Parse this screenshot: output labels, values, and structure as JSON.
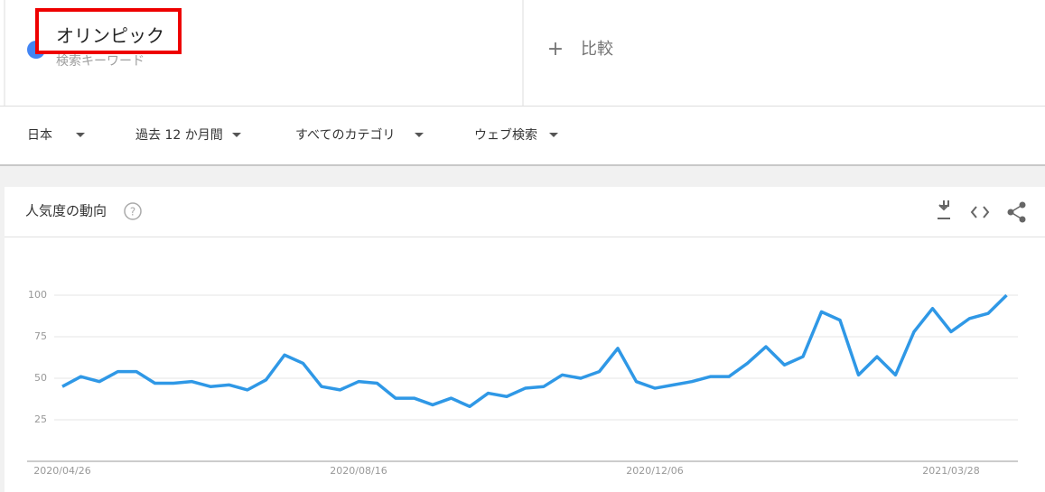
{
  "search": {
    "term": "オリンピック",
    "term_type": "検索キーワード",
    "compare": "比較"
  },
  "filters": [
    "日本",
    "過去 12 か月間",
    "すべてのカテゴリ",
    "ウェブ検索"
  ],
  "chart_data": {
    "type": "line",
    "title": "人気度の動向",
    "categories": [
      "2020/04/26",
      null,
      null,
      null,
      null,
      null,
      null,
      null,
      null,
      null,
      null,
      null,
      null,
      null,
      null,
      null,
      "2020/08/16",
      null,
      null,
      null,
      null,
      null,
      null,
      null,
      null,
      null,
      null,
      null,
      null,
      null,
      null,
      null,
      "2020/12/06",
      null,
      null,
      null,
      null,
      null,
      null,
      null,
      null,
      null,
      null,
      null,
      null,
      null,
      null,
      null,
      "2021/03/28",
      null,
      null,
      null
    ],
    "series": [
      {
        "color": "#2f98e6",
        "values": [
          45,
          51,
          48,
          54,
          54,
          47,
          47,
          48,
          45,
          46,
          43,
          49,
          64,
          59,
          45,
          43,
          48,
          47,
          38,
          38,
          34,
          38,
          33,
          41,
          39,
          44,
          45,
          52,
          50,
          54,
          68,
          48,
          44,
          46,
          48,
          51,
          51,
          59,
          69,
          58,
          63,
          90,
          85,
          52,
          63,
          52,
          78,
          92,
          78,
          86,
          89,
          100
        ]
      }
    ],
    "ylim": [
      0,
      100
    ],
    "yticks": [
      25,
      50,
      75,
      100
    ],
    "grid": true
  }
}
